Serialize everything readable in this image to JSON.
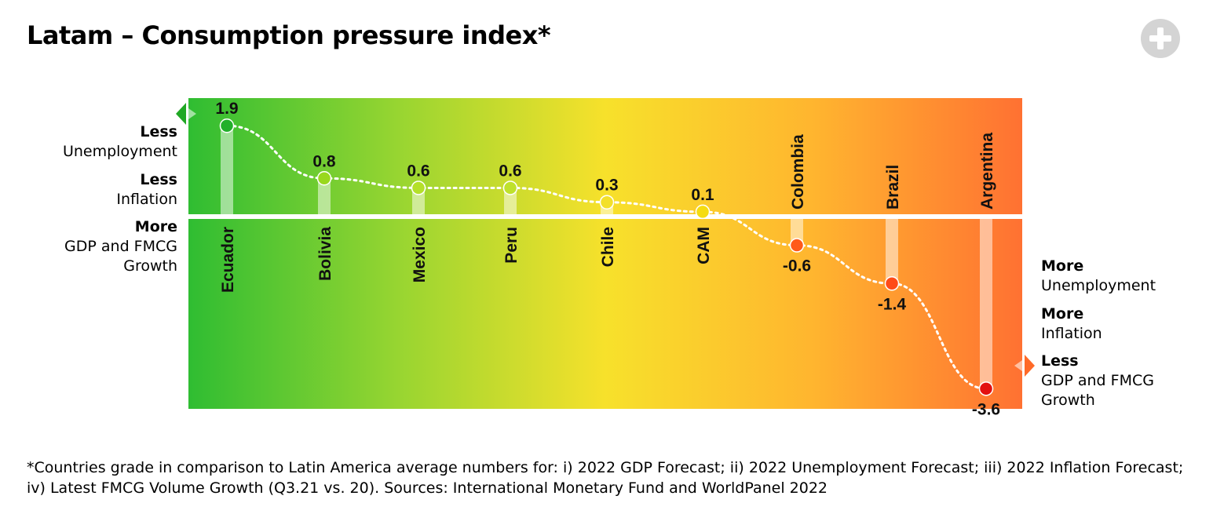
{
  "title": "Latam – Consumption pressure index*",
  "add_icon": "plus-circle-icon",
  "left_labels": [
    {
      "strong": "Less",
      "text": "Unemployment"
    },
    {
      "strong": "Less",
      "text": "Inflation"
    },
    {
      "strong": "More",
      "text": "GDP and FMCG",
      "text2": "Growth"
    }
  ],
  "right_labels": [
    {
      "strong": "More",
      "text": "Unemployment"
    },
    {
      "strong": "More",
      "text": "Inflation"
    },
    {
      "strong": "Less",
      "text": "GDP and FMCG",
      "text2": "Growth"
    }
  ],
  "chart_data": {
    "type": "line",
    "title": "Latam – Consumption pressure index*",
    "categories": [
      "Ecuador",
      "Bolivia",
      "Mexico",
      "Peru",
      "Chile",
      "CAM",
      "Colombia",
      "Brazil",
      "Argentina"
    ],
    "values": [
      1.9,
      0.8,
      0.6,
      0.6,
      0.3,
      0.1,
      -0.6,
      -1.4,
      -3.6
    ],
    "value_labels": [
      "1.9",
      "0.8",
      "0.6",
      "0.6",
      "0.3",
      "0.1",
      "-0.6",
      "-1.4",
      "-3.6"
    ],
    "point_colors": [
      "#22b02a",
      "#99d81e",
      "#b4e02a",
      "#bfe12c",
      "#f3e02a",
      "#f5dc10",
      "#ff5a1a",
      "#ff4b18",
      "#e31010"
    ],
    "ylim": [
      -4.05,
      2.45
    ],
    "background_gradient": [
      "#2fbd32",
      "#97d531",
      "#f7e12b",
      "#ffb52f",
      "#ff7132"
    ],
    "grid": false,
    "line_style": "dotted white",
    "legend": "none"
  },
  "footnote": "*Countries grade in comparison to Latin America average numbers for: i) 2022 GDP Forecast; ii) 2022 Unemployment Forecast; iii) 2022 Inflation Forecast; iv) Latest FMCG Volume Growth (Q3.21 vs. 20). Sources: International Monetary Fund and WorldPanel 2022"
}
